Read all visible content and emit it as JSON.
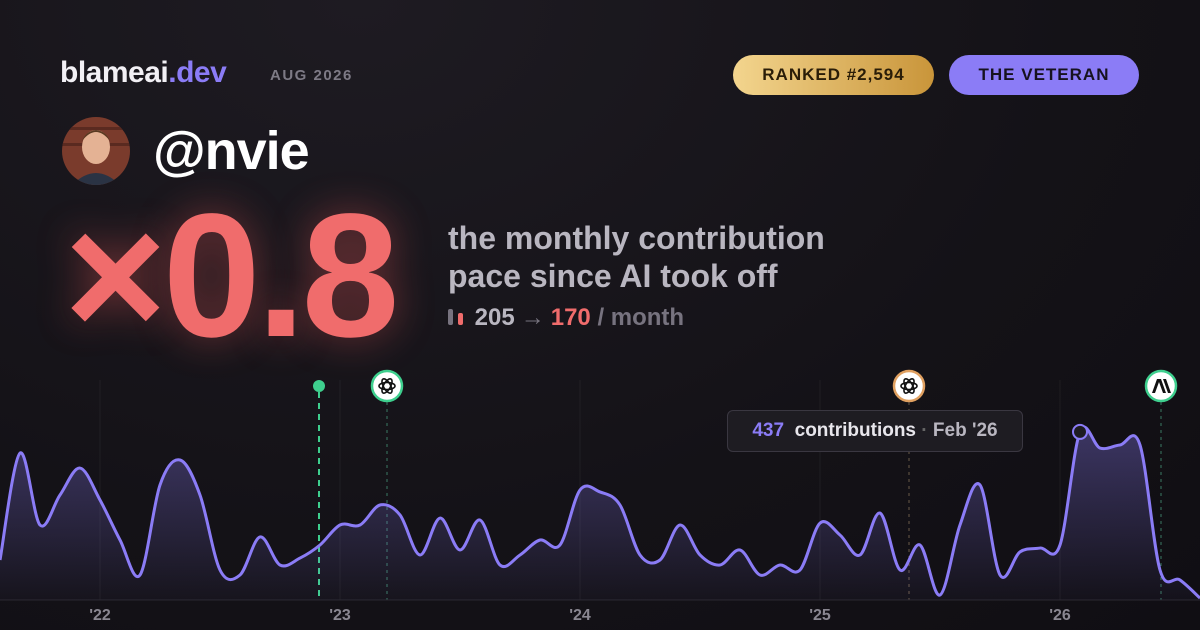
{
  "brand": {
    "name": "blameai",
    "tld": ".dev"
  },
  "date": "AUG 2026",
  "badges": [
    "RANKED #2,594",
    "THE VETERAN"
  ],
  "handle": "@nvie",
  "pace": {
    "multiplier": "×0.8",
    "description": [
      "the monthly contribution",
      "pace since AI took off"
    ],
    "before": 205,
    "arrow": "→",
    "after": 170,
    "unit": "/ month"
  },
  "tooltip": {
    "label": "contributions",
    "date": "Feb '26"
  },
  "chart_data": {
    "type": "line",
    "color": "#8b7cf6",
    "categories": [
      null,
      null,
      null,
      null,
      null,
      "'22",
      null,
      null,
      null,
      null,
      null,
      null,
      null,
      null,
      null,
      null,
      null,
      "'23",
      null,
      null,
      null,
      null,
      null,
      null,
      null,
      null,
      null,
      null,
      null,
      "'24",
      null,
      null,
      null,
      null,
      null,
      null,
      null,
      null,
      null,
      null,
      null,
      "'25",
      null,
      null,
      null,
      null,
      null,
      null,
      null,
      null,
      null,
      null,
      null,
      "'26",
      null,
      null,
      null,
      null,
      null,
      null,
      null
    ],
    "values": [
      104,
      382,
      195,
      273,
      343,
      260,
      156,
      65,
      299,
      364,
      273,
      78,
      65,
      164,
      91,
      109,
      143,
      195,
      195,
      247,
      221,
      117,
      213,
      130,
      208,
      91,
      117,
      156,
      143,
      286,
      281,
      247,
      117,
      104,
      195,
      117,
      91,
      130,
      65,
      91,
      78,
      200,
      169,
      117,
      226,
      78,
      143,
      13,
      195,
      299,
      65,
      125,
      135,
      143,
      437,
      395,
      403,
      403,
      78,
      52,
      5
    ],
    "ylim": [
      0,
      560
    ]
  }
}
